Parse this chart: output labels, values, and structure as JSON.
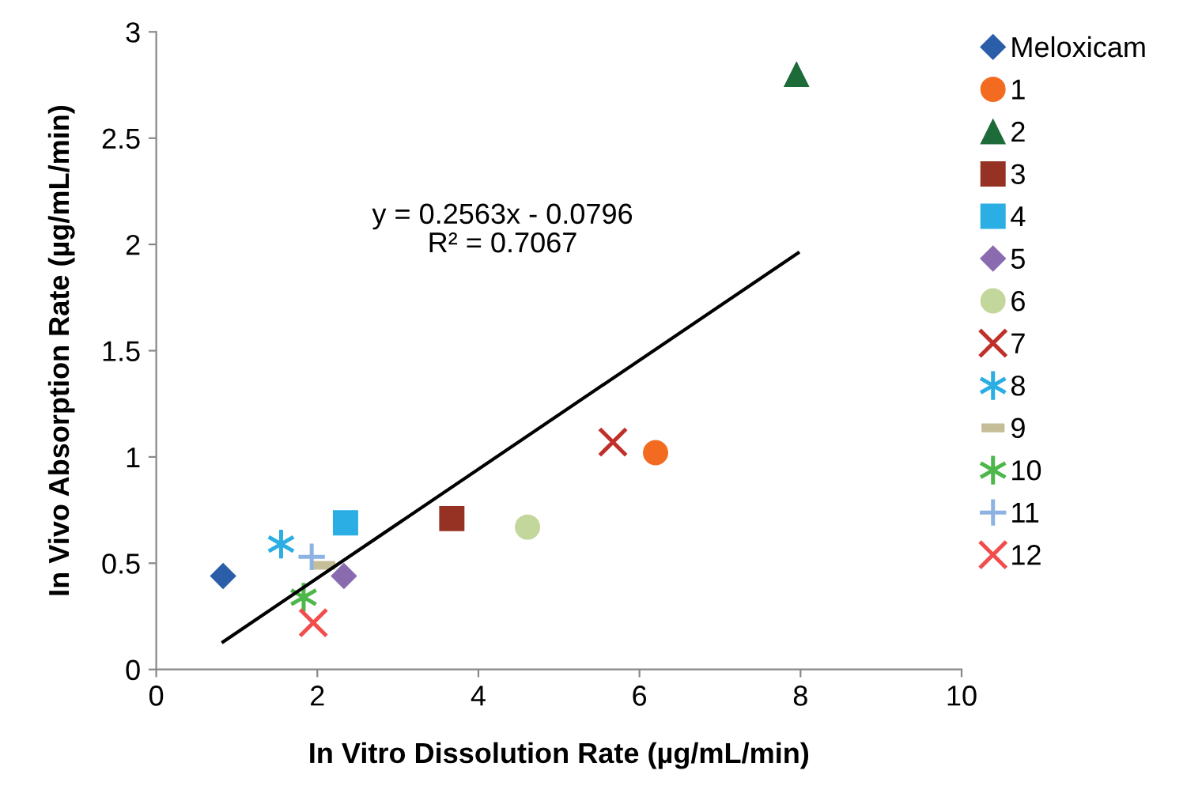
{
  "chart_data": {
    "type": "scatter",
    "xlabel": "In Vitro Dissolution Rate (µg/mL/min)",
    "ylabel": "In Vivo Absorption Rate (µg/mL/min)",
    "xlim": [
      0,
      10
    ],
    "xticks": [
      0,
      2,
      4,
      6,
      8,
      10
    ],
    "ylim": [
      0,
      3
    ],
    "yticks": [
      0,
      0.5,
      1,
      1.5,
      2,
      2.5,
      3
    ],
    "grid": false,
    "legend": "right",
    "annotations": [
      "y = 0.2563x - 0.0796\nR² = 0.7067"
    ],
    "series": [
      {
        "name": "Meloxicam",
        "color": "#2a5ea8",
        "marker": "diamond",
        "x": [
          0.83
        ],
        "values": [
          0.44
        ]
      },
      {
        "name": "1",
        "color": "#f36b21",
        "marker": "circle",
        "x": [
          6.2
        ],
        "values": [
          1.02
        ]
      },
      {
        "name": "2",
        "color": "#1e6b3a",
        "marker": "triangle",
        "x": [
          7.95
        ],
        "values": [
          2.8
        ]
      },
      {
        "name": "3",
        "color": "#953224",
        "marker": "square",
        "x": [
          3.67
        ],
        "values": [
          0.71
        ]
      },
      {
        "name": "4",
        "color": "#2aaee3",
        "marker": "square",
        "x": [
          2.35
        ],
        "values": [
          0.69
        ]
      },
      {
        "name": "5",
        "color": "#8a6bb0",
        "marker": "diamond",
        "x": [
          2.33
        ],
        "values": [
          0.44
        ]
      },
      {
        "name": "6",
        "color": "#c3d69b",
        "marker": "circle",
        "x": [
          4.61
        ],
        "values": [
          0.67
        ]
      },
      {
        "name": "7",
        "color": "#c0302a",
        "marker": "x",
        "x": [
          5.67
        ],
        "values": [
          1.07
        ]
      },
      {
        "name": "8",
        "color": "#2aaee3",
        "marker": "cross",
        "x": [
          1.55
        ],
        "values": [
          0.59
        ]
      },
      {
        "name": "9",
        "color": "#c4bd97",
        "x": [
          2.08
        ],
        "values": [
          0.49
        ]
      },
      {
        "name": "10",
        "color": "#4db849",
        "marker": "cross",
        "x": [
          1.83
        ],
        "values": [
          0.34
        ]
      },
      {
        "name": "11",
        "color": "#8db3e2",
        "marker": "plus",
        "x": [
          1.93
        ],
        "values": [
          0.53
        ]
      },
      {
        "name": "12",
        "color": "#f24d4d",
        "marker": "x",
        "x": [
          1.95
        ],
        "values": [
          0.22
        ]
      },
      {
        "type": "line",
        "color": "#000000",
        "marker": "none",
        "line_style": "solid",
        "x": [
          0.83,
          7.97
        ],
        "values": [
          0.13,
          1.96
        ]
      }
    ]
  }
}
